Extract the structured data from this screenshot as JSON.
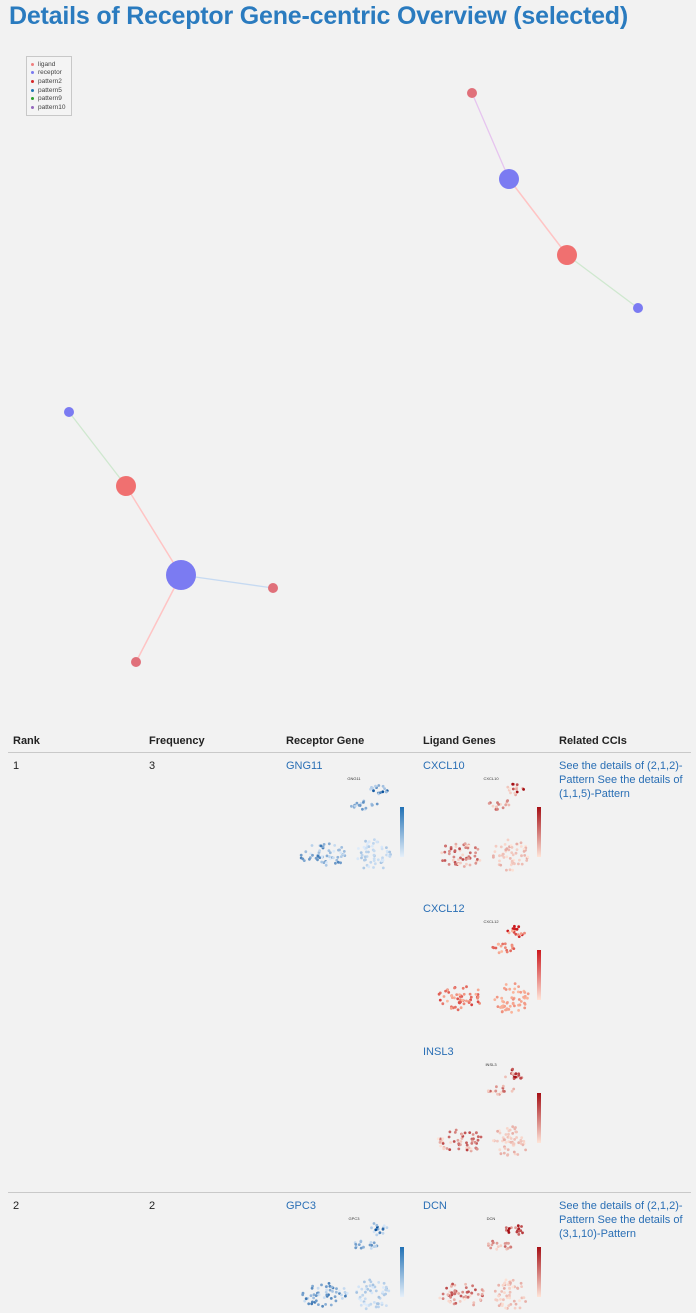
{
  "page": {
    "title": "Details of Receptor Gene-centric Overview (selected)"
  },
  "legend": [
    {
      "label": "ligand",
      "color": "#f08080"
    },
    {
      "label": "receptor",
      "color": "#7a7af0"
    },
    {
      "label": "pattern2",
      "color": "#d62728"
    },
    {
      "label": "pattern5",
      "color": "#1f77b4"
    },
    {
      "label": "pattern9",
      "color": "#2ca02c"
    },
    {
      "label": "pattern10",
      "color": "#9467bd"
    }
  ],
  "table": {
    "headers": [
      "Rank",
      "Frequency",
      "Receptor Gene",
      "Ligand Genes",
      "Related CCIs"
    ],
    "rows": [
      {
        "rank": "1",
        "frequency": "3",
        "receptor": "GNG11",
        "receptor_plot_title": "GNG11",
        "ligands": [
          {
            "name": "CXCL10",
            "plot_title": "CXCL10"
          },
          {
            "name": "CXCL12",
            "plot_title": "CXCL12"
          },
          {
            "name": "INSL3",
            "plot_title": "INSL3"
          }
        ],
        "ccis": [
          "See the details of (2,1,2)-Pattern",
          "See the details of (1,1,5)-Pattern"
        ]
      },
      {
        "rank": "2",
        "frequency": "2",
        "receptor": "GPC3",
        "receptor_plot_title": "GPC3",
        "ligands": [
          {
            "name": "DCN",
            "plot_title": "DCN"
          }
        ],
        "ccis": [
          "See the details of (2,1,2)-Pattern",
          "See the details of (3,1,10)-Pattern"
        ]
      }
    ]
  }
}
